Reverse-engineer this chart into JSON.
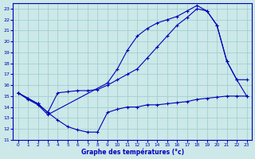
{
  "bg_color": "#cce8e8",
  "grid_color": "#99cccc",
  "line_color": "#0000bb",
  "xlabel": "Graphe des températures (°c)",
  "xlim": [
    -0.5,
    23.5
  ],
  "ylim": [
    11,
    23.5
  ],
  "xticks": [
    0,
    1,
    2,
    3,
    4,
    5,
    6,
    7,
    8,
    9,
    10,
    11,
    12,
    13,
    14,
    15,
    16,
    17,
    18,
    19,
    20,
    21,
    22,
    23
  ],
  "yticks": [
    11,
    12,
    13,
    14,
    15,
    16,
    17,
    18,
    19,
    20,
    21,
    22,
    23
  ],
  "series": [
    {
      "x": [
        0,
        1,
        2,
        3,
        9,
        10,
        11,
        12,
        13,
        14,
        15,
        16,
        17,
        18,
        19,
        20,
        21,
        22,
        23
      ],
      "y": [
        15.3,
        14.7,
        14.2,
        13.3,
        16.2,
        17.5,
        19.2,
        20.5,
        21.2,
        21.7,
        22.0,
        22.3,
        22.8,
        23.3,
        22.8,
        21.5,
        18.2,
        16.5,
        15.0
      ]
    },
    {
      "x": [
        0,
        1,
        2,
        3,
        4,
        5,
        6,
        7,
        8,
        9,
        10,
        11,
        12,
        13,
        14,
        15,
        16,
        17,
        18,
        19,
        20,
        21,
        22,
        23
      ],
      "y": [
        15.3,
        14.8,
        14.3,
        13.5,
        15.3,
        15.4,
        15.5,
        15.5,
        15.6,
        16.0,
        16.5,
        17.0,
        17.5,
        18.5,
        19.5,
        20.5,
        21.5,
        22.2,
        23.0,
        22.8,
        21.5,
        18.2,
        16.5,
        16.5
      ]
    },
    {
      "x": [
        0,
        1,
        2,
        3,
        4,
        5,
        6,
        7,
        8,
        9,
        10,
        11,
        12,
        13,
        14,
        15,
        16,
        17,
        18,
        19,
        20,
        21,
        22,
        23
      ],
      "y": [
        15.3,
        14.8,
        14.3,
        13.5,
        12.8,
        12.2,
        11.9,
        11.7,
        11.7,
        13.5,
        13.8,
        14.0,
        14.0,
        14.2,
        14.2,
        14.3,
        14.4,
        14.5,
        14.7,
        14.8,
        14.9,
        15.0,
        15.0,
        15.0
      ]
    }
  ]
}
